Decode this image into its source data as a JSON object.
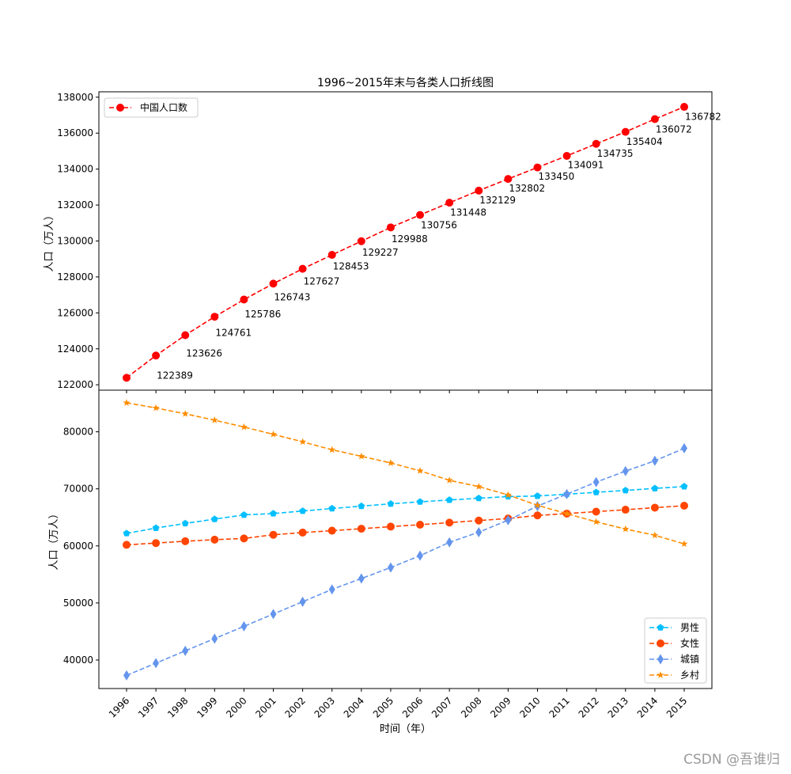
{
  "watermark": "CSDN @吾谁归",
  "chart_data": [
    {
      "type": "line",
      "title": "1996~2015年末与各类人口折线图",
      "ylabel": "人口（万人）",
      "xlabel": "",
      "ylim": [
        121700,
        138300
      ],
      "yticks": [
        122000,
        124000,
        126000,
        128000,
        130000,
        132000,
        134000,
        136000,
        138000
      ],
      "x": [
        1996,
        1997,
        1998,
        1999,
        2000,
        2001,
        2002,
        2003,
        2004,
        2005,
        2006,
        2007,
        2008,
        2009,
        2010,
        2011,
        2012,
        2013,
        2014,
        2015
      ],
      "legend_position": "top-left",
      "series": [
        {
          "name": "中国人口数",
          "color": "#ff0000",
          "marker": "circle",
          "values": [
            122389,
            123626,
            124761,
            125786,
            126743,
            127627,
            128453,
            129227,
            129988,
            130756,
            131448,
            132129,
            132802,
            133450,
            134091,
            134735,
            135404,
            136072,
            136782,
            137462
          ],
          "data_labels": [
            "122389",
            "123626",
            "124761",
            "125786",
            "126743",
            "127627",
            "128453",
            "129227",
            "129988",
            "130756",
            "131448",
            "132129",
            "132802",
            "133450",
            "134091",
            "134735",
            "135404",
            "136072",
            "136782"
          ]
        }
      ]
    },
    {
      "type": "line",
      "title": "",
      "ylabel": "人口（万人）",
      "xlabel": "时间（年）",
      "ylim": [
        35000,
        87300
      ],
      "yticks": [
        40000,
        50000,
        60000,
        70000,
        80000
      ],
      "x": [
        1996,
        1997,
        1998,
        1999,
        2000,
        2001,
        2002,
        2003,
        2004,
        2005,
        2006,
        2007,
        2008,
        2009,
        2010,
        2011,
        2012,
        2013,
        2014,
        2015
      ],
      "legend_position": "lower-right",
      "series": [
        {
          "name": "男性",
          "color": "#00bfff",
          "marker": "pentagon",
          "values": [
            62200,
            63130,
            63940,
            64690,
            65437,
            65672,
            66115,
            66556,
            66976,
            67375,
            67728,
            68048,
            68357,
            68647,
            68748,
            69068,
            69395,
            69728,
            70079,
            70414
          ]
        },
        {
          "name": "女性",
          "color": "#ff4500",
          "marker": "circle",
          "values": [
            60189,
            60496,
            60821,
            61096,
            61306,
            61955,
            62338,
            62671,
            63012,
            63381,
            63720,
            64081,
            64445,
            64803,
            65343,
            65667,
            66009,
            66344,
            66703,
            67048
          ]
        },
        {
          "name": "城镇",
          "color": "#6495ed",
          "marker": "diamond",
          "values": [
            37304,
            39449,
            41608,
            43748,
            45906,
            48064,
            50212,
            52376,
            54283,
            56212,
            58288,
            60633,
            62403,
            64512,
            66978,
            69079,
            71182,
            73111,
            74916,
            77116
          ]
        },
        {
          "name": "乡村",
          "color": "#ff8c00",
          "marker": "star",
          "values": [
            85085,
            84177,
            83153,
            82038,
            80837,
            79563,
            78241,
            76851,
            75705,
            74544,
            73160,
            71496,
            70399,
            68938,
            67113,
            65656,
            64222,
            62961,
            61866,
            60346
          ]
        }
      ]
    }
  ]
}
